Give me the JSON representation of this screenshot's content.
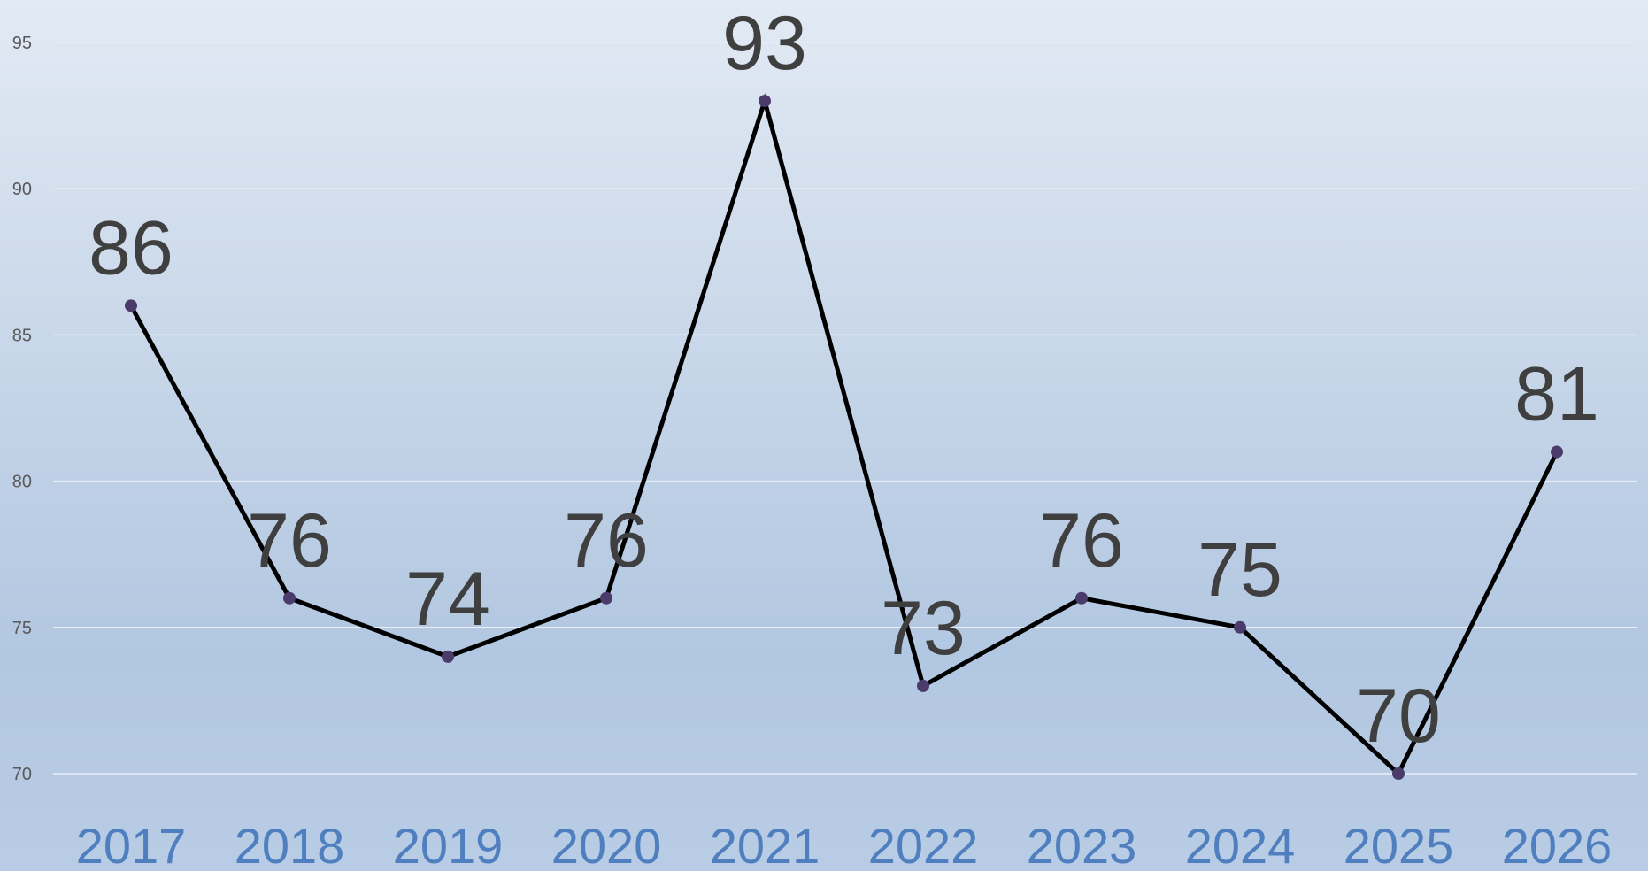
{
  "chart_data": {
    "type": "line",
    "categories": [
      "2017",
      "2018",
      "2019",
      "2020",
      "2021",
      "2022",
      "2023",
      "2024",
      "2025",
      "2026"
    ],
    "series": [
      {
        "values": [
          86,
          76,
          74,
          76,
          93,
          73,
          76,
          75,
          70,
          81
        ]
      }
    ],
    "title": "",
    "xlabel": "",
    "ylabel": "",
    "ylim": [
      70,
      95
    ],
    "yticks": [
      70,
      75,
      80,
      85,
      90,
      95
    ],
    "grid": true,
    "legend": "none",
    "data_labels": true,
    "colors": {
      "line": "#000000",
      "marker": "#4b3b6b",
      "data_label": "#3f3f3f",
      "x_tick_label": "#4f7fbf",
      "y_tick_label": "#595959",
      "gridline": "#e8eef6",
      "background_top": "#e2eaf4",
      "background_bottom": "#b2c7e1"
    }
  }
}
